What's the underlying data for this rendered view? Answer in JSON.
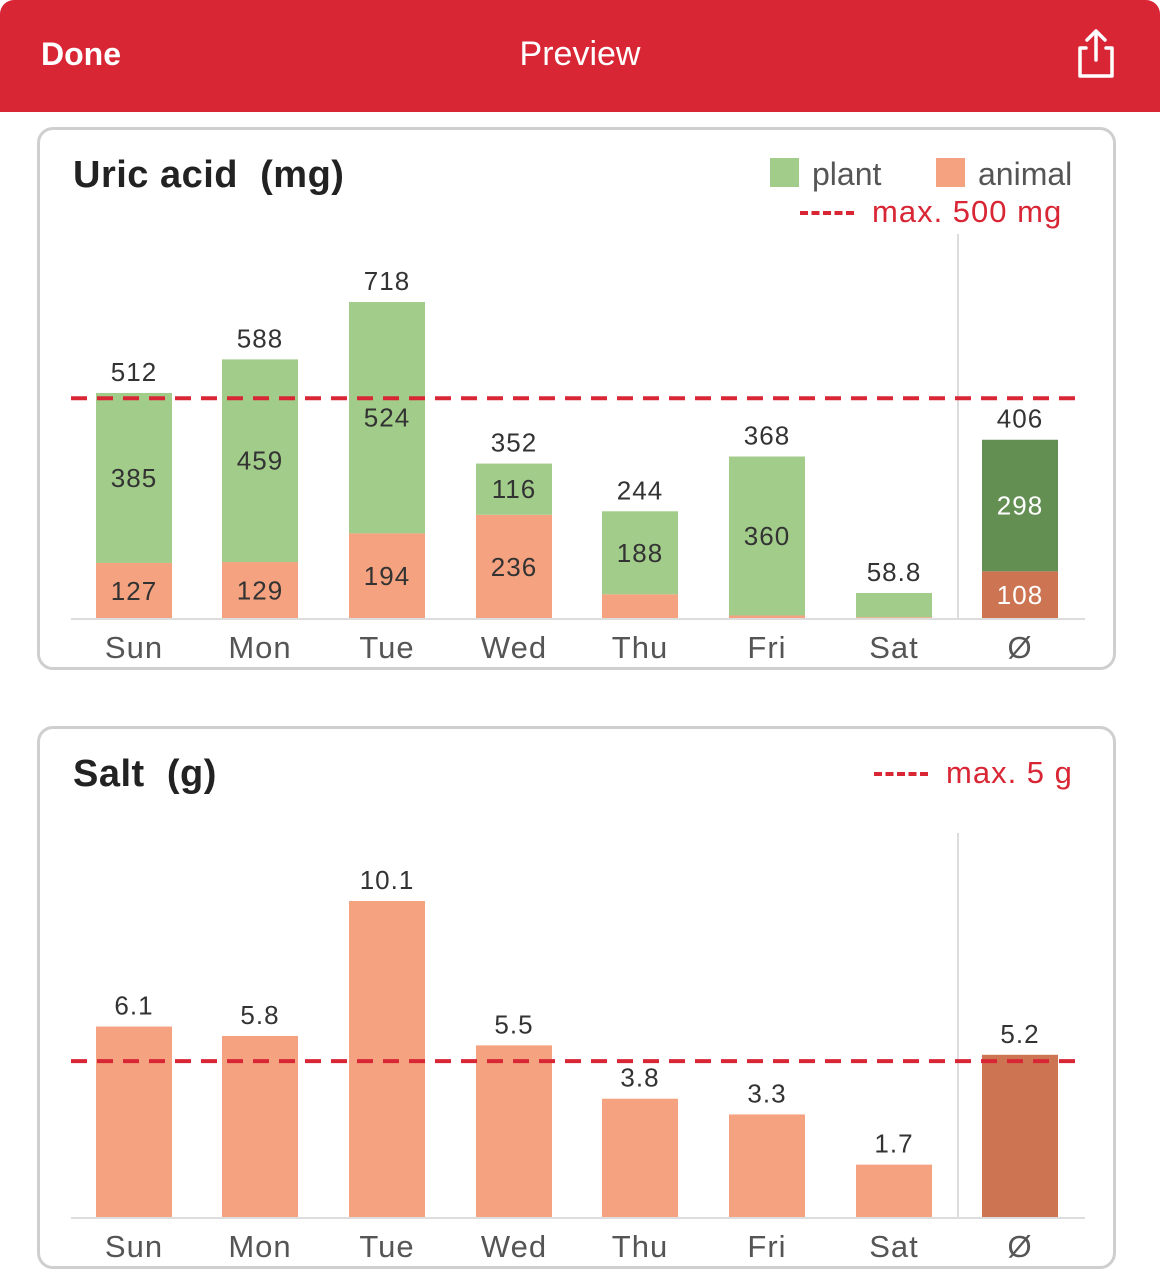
{
  "navbar": {
    "done_label": "Done",
    "title": "Preview",
    "share_icon": "share-icon"
  },
  "colors": {
    "navbar": "#d82635",
    "plant": "#a2cc8a",
    "animal": "#f4a27f",
    "average_plant": "#648f53",
    "average_animal": "#cd7452",
    "limit": "#d82635"
  },
  "chart_data": [
    {
      "type": "bar",
      "stacked": true,
      "title": "Uric acid",
      "unit_label": "(mg)",
      "categories": [
        "Sun",
        "Mon",
        "Tue",
        "Wed",
        "Thu",
        "Fri",
        "Sat",
        "Ø"
      ],
      "series": [
        {
          "name": "animal",
          "values": [
            127,
            129,
            194,
            236,
            56,
            8,
            4,
            108
          ],
          "labels": [
            "127",
            "129",
            "194",
            "236",
            "",
            "",
            "",
            "108"
          ]
        },
        {
          "name": "plant",
          "values": [
            385,
            459,
            524,
            116,
            188,
            360,
            54.8,
            298
          ],
          "labels": [
            "385",
            "459",
            "524",
            "116",
            "188",
            "360",
            "",
            "298"
          ]
        }
      ],
      "totals": [
        "512",
        "588",
        "718",
        "352",
        "244",
        "368",
        "58.8",
        "406"
      ],
      "reference_line": {
        "value": 500,
        "label": "max. 500 mg"
      },
      "ylim": [
        0,
        800
      ],
      "legend_position": "top-right",
      "grid": false
    },
    {
      "type": "bar",
      "title": "Salt",
      "unit_label": "(g)",
      "categories": [
        "Sun",
        "Mon",
        "Tue",
        "Wed",
        "Thu",
        "Fri",
        "Sat",
        "Ø"
      ],
      "values": [
        6.1,
        5.8,
        10.1,
        5.5,
        3.8,
        3.3,
        1.7,
        5.2
      ],
      "labels": [
        "6.1",
        "5.8",
        "10.1",
        "5.5",
        "3.8",
        "3.3",
        "1.7",
        "5.2"
      ],
      "reference_line": {
        "value": 5,
        "label": "max. 5 g"
      },
      "ylim": [
        0,
        11.5
      ],
      "grid": false
    }
  ]
}
